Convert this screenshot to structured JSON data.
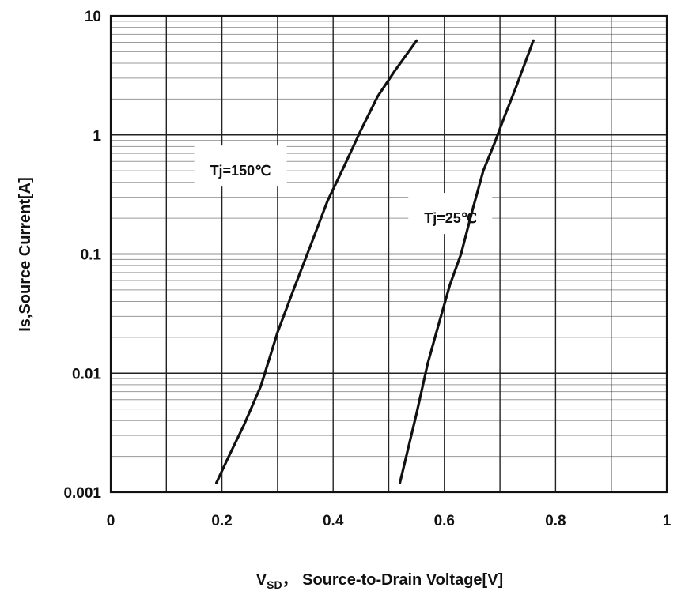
{
  "chart_data": {
    "type": "line",
    "title": "",
    "xlabel": {
      "main": "V",
      "sub": "SD",
      "rest": "， Source-to-Drain  Voltage[V]"
    },
    "ylabel": "Is,Source Current[A]",
    "xlim": [
      0,
      1
    ],
    "ylim": [
      0.001,
      10
    ],
    "yscale": "log",
    "grid": true,
    "x_ticks": [
      "0",
      "0.2",
      "0.4",
      "0.6",
      "0.8",
      "1"
    ],
    "y_ticks": [
      "0.001",
      "0.01",
      "0.1",
      "1",
      "10"
    ],
    "series": [
      {
        "name": "Tj=150℃",
        "points": [
          [
            0.19,
            0.0012
          ],
          [
            0.21,
            0.0019
          ],
          [
            0.24,
            0.0037
          ],
          [
            0.27,
            0.0078
          ],
          [
            0.3,
            0.022
          ],
          [
            0.33,
            0.052
          ],
          [
            0.36,
            0.12
          ],
          [
            0.39,
            0.28
          ],
          [
            0.42,
            0.55
          ],
          [
            0.45,
            1.1
          ],
          [
            0.48,
            2.1
          ],
          [
            0.51,
            3.4
          ],
          [
            0.55,
            6.2
          ]
        ]
      },
      {
        "name": "Tj=25℃",
        "points": [
          [
            0.52,
            0.0012
          ],
          [
            0.55,
            0.0046
          ],
          [
            0.57,
            0.012
          ],
          [
            0.59,
            0.026
          ],
          [
            0.61,
            0.055
          ],
          [
            0.63,
            0.1
          ],
          [
            0.65,
            0.23
          ],
          [
            0.67,
            0.5
          ],
          [
            0.69,
            0.85
          ],
          [
            0.71,
            1.5
          ],
          [
            0.73,
            2.6
          ],
          [
            0.76,
            6.2
          ]
        ]
      }
    ],
    "annotations": [
      {
        "text": "Tj=150℃",
        "x": 0.19,
        "y": 0.5
      },
      {
        "text": "Tj=25℃",
        "x": 0.575,
        "y": 0.2
      }
    ]
  }
}
